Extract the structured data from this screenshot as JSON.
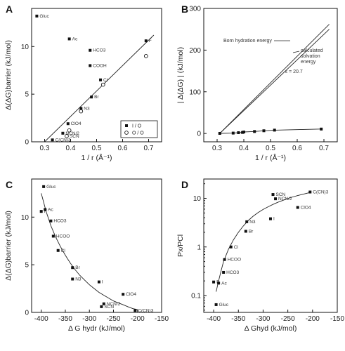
{
  "figure": {
    "panels": [
      {
        "id": "A",
        "label": "A",
        "type": "scatter",
        "ylabel": "Δ(ΔG)barrier (kJ/mol)",
        "xlabel": "1 / r (Å⁻¹)",
        "xlim": [
          0.25,
          0.75
        ],
        "ylim": [
          0,
          14
        ],
        "xticks": [
          "0.3",
          "0.4",
          "0.5",
          "0.6",
          "0.7"
        ],
        "yticks": [
          "0",
          "5",
          "10"
        ],
        "legend": {
          "position": "lower-right",
          "items": [
            "I / O",
            "O / O"
          ]
        },
        "series": [
          {
            "name": "I / O",
            "marker": "filled-square",
            "points": [
              {
                "label": "Gluc",
                "x": 0.27,
                "y": 13.2
              },
              {
                "label": "Ac",
                "x": 0.395,
                "y": 10.8
              },
              {
                "label": "HCO3",
                "x": 0.475,
                "y": 9.6
              },
              {
                "label": "F",
                "x": 0.69,
                "y": 10.6
              },
              {
                "label": "COOH",
                "x": 0.475,
                "y": 8.0
              },
              {
                "label": "Cl",
                "x": 0.515,
                "y": 6.5
              },
              {
                "label": "Br",
                "x": 0.48,
                "y": 4.7
              },
              {
                "label": "N3",
                "x": 0.44,
                "y": 3.5
              },
              {
                "label": "ClO4",
                "x": 0.39,
                "y": 1.9
              },
              {
                "label": "NCN/2",
                "x": 0.37,
                "y": 0.9
              },
              {
                "label": "C(CN)3",
                "x": 0.33,
                "y": 0.2
              }
            ]
          },
          {
            "name": "O / O",
            "marker": "open-circle",
            "points": [
              {
                "label": "",
                "x": 0.69,
                "y": 9.0
              },
              {
                "label": "",
                "x": 0.525,
                "y": 6.0
              },
              {
                "label": "",
                "x": 0.44,
                "y": 3.2
              },
              {
                "label": "",
                "x": 0.395,
                "y": 1.2
              },
              {
                "label": "SCN",
                "x": 0.385,
                "y": 0.6
              }
            ]
          }
        ],
        "fit_line": {
          "x": [
            0.3,
            0.72
          ],
          "y": [
            0.0,
            11.2
          ]
        }
      },
      {
        "id": "B",
        "label": "B",
        "type": "line",
        "ylabel": "| Δ(ΔG) | (kJ/mol)",
        "xlabel": "1 / r (Å⁻¹)",
        "xlim": [
          0.25,
          0.75
        ],
        "ylim": [
          -20,
          300
        ],
        "xticks": [
          "0.3",
          "0.4",
          "0.5",
          "0.6",
          "0.7"
        ],
        "yticks": [
          "0",
          "100",
          "200",
          "300"
        ],
        "lines": [
          {
            "name": "Born hydration energy",
            "x": [
              0.31,
              0.72
            ],
            "y": [
              0,
              262
            ]
          },
          {
            "name": "calculated solvation energy",
            "x": [
              0.31,
              0.72
            ],
            "y": [
              0,
              250
            ]
          }
        ],
        "points": {
          "x": [
            0.31,
            0.36,
            0.38,
            0.395,
            0.4,
            0.44,
            0.475,
            0.515,
            0.69
          ],
          "y": [
            0.2,
            0.9,
            1.9,
            2.5,
            3.5,
            4.7,
            6.5,
            8.0,
            10.6
          ]
        },
        "annotations": [
          "Born hydration energy",
          "calculated solvation energy",
          "ε = 20.7"
        ]
      },
      {
        "id": "C",
        "label": "C",
        "type": "scatter",
        "ylabel": "Δ(ΔG)barrier (kJ/mol)",
        "xlabel": "Δ G hydr (kJ/mol)",
        "xlim": [
          -420,
          -150
        ],
        "ylim": [
          0,
          14
        ],
        "xticks": [
          "-400",
          "-350",
          "-300",
          "-250",
          "-200",
          "-150"
        ],
        "yticks": [
          "0",
          "5",
          "10"
        ],
        "points": [
          {
            "label": "Gluc",
            "x": -395,
            "y": 13.2
          },
          {
            "label": "F",
            "x": -400,
            "y": 10.6
          },
          {
            "label": "Ac",
            "x": -392,
            "y": 10.8
          },
          {
            "label": "HCO3",
            "x": -380,
            "y": 9.6
          },
          {
            "label": "HCOO",
            "x": -375,
            "y": 8.0
          },
          {
            "label": "Cl",
            "x": -365,
            "y": 6.5
          },
          {
            "label": "Br",
            "x": -335,
            "y": 4.7
          },
          {
            "label": "N3",
            "x": -335,
            "y": 3.5
          },
          {
            "label": "I",
            "x": -280,
            "y": 3.2
          },
          {
            "label": "ClO4",
            "x": -230,
            "y": 1.9
          },
          {
            "label": "NCN/2",
            "x": -270,
            "y": 0.9
          },
          {
            "label": "SCN",
            "x": -275,
            "y": 0.6
          },
          {
            "label": "C(CN)3",
            "x": -205,
            "y": 0.2
          }
        ],
        "fit_curve": {
          "x": [
            -400,
            -390,
            -380,
            -370,
            -360,
            -350,
            -340,
            -330,
            -320,
            -310,
            -300,
            -290,
            -280,
            -270,
            -260,
            -250,
            -240,
            -230,
            -220,
            -210,
            -200
          ],
          "y": [
            12.5,
            10.6,
            9.1,
            7.9,
            6.9,
            6.0,
            5.2,
            4.5,
            3.9,
            3.4,
            2.9,
            2.5,
            2.1,
            1.8,
            1.5,
            1.2,
            1.0,
            0.8,
            0.6,
            0.4,
            0.3
          ]
        }
      },
      {
        "id": "D",
        "label": "D",
        "type": "scatter",
        "ylabel": "Px/PCl",
        "xlabel": "Δ Ghyd (kJ/mol)",
        "xlim": [
          -420,
          -150
        ],
        "ylim": [
          0.045,
          25
        ],
        "yscale": "log",
        "xticks": [
          "-400",
          "-350",
          "-300",
          "-250",
          "-200",
          "-150"
        ],
        "yticks": [
          "0.1",
          "1",
          "10"
        ],
        "points": [
          {
            "label": "Gluc",
            "x": -395,
            "y": 0.065
          },
          {
            "label": "F",
            "x": -400,
            "y": 0.19
          },
          {
            "label": "Ac",
            "x": -390,
            "y": 0.18
          },
          {
            "label": "HCO3",
            "x": -380,
            "y": 0.3
          },
          {
            "label": "HCOO",
            "x": -378,
            "y": 0.55
          },
          {
            "label": "Cl",
            "x": -365,
            "y": 1.0
          },
          {
            "label": "Br",
            "x": -335,
            "y": 2.1
          },
          {
            "label": "N3",
            "x": -333,
            "y": 3.3
          },
          {
            "label": "I",
            "x": -285,
            "y": 3.8
          },
          {
            "label": "ClO4",
            "x": -230,
            "y": 6.5
          },
          {
            "label": "SCN",
            "x": -280,
            "y": 12.0
          },
          {
            "label": "NCN/2",
            "x": -275,
            "y": 9.8
          },
          {
            "label": "C(CN)3",
            "x": -205,
            "y": 13.5
          }
        ],
        "fit_curve": {
          "x": [
            -395,
            -390,
            -385,
            -380,
            -370,
            -360,
            -350,
            -340,
            -330,
            -320,
            -310,
            -300,
            -290,
            -280,
            -270,
            -260,
            -250,
            -240,
            -230,
            -220,
            -210,
            -205
          ],
          "y": [
            0.12,
            0.2,
            0.32,
            0.5,
            0.9,
            1.4,
            2.0,
            2.7,
            3.5,
            4.3,
            5.1,
            5.9,
            6.7,
            7.5,
            8.3,
            9.1,
            9.9,
            10.7,
            11.4,
            12.1,
            12.8,
            13.2
          ]
        }
      }
    ]
  }
}
